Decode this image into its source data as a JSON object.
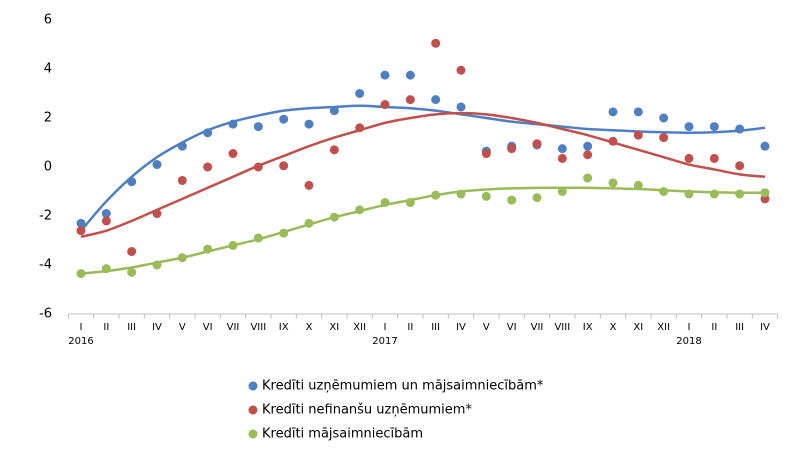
{
  "chart_data": {
    "type": "scatter-trend",
    "categories": [
      "I",
      "II",
      "III",
      "IV",
      "V",
      "VI",
      "VII",
      "VIII",
      "IX",
      "X",
      "XI",
      "XII",
      "I",
      "II",
      "III",
      "IV",
      "V",
      "VI",
      "VII",
      "VIII",
      "IX",
      "X",
      "XI",
      "XII",
      "I",
      "II",
      "III",
      "IV"
    ],
    "years": [
      "2016",
      null,
      null,
      null,
      null,
      null,
      null,
      null,
      null,
      null,
      null,
      null,
      "2017",
      null,
      null,
      null,
      null,
      null,
      null,
      null,
      null,
      null,
      null,
      null,
      "2018",
      null,
      null,
      null
    ],
    "ylim": [
      -6,
      6
    ],
    "yticks": [
      -6,
      -4,
      -2,
      0,
      2,
      4,
      6
    ],
    "series": [
      {
        "name": "Kredīti uzņēmumiem un mājsaimniecībām*",
        "color": "#4f7fc0",
        "values": [
          -2.3,
          -1.9,
          -0.6,
          0.1,
          0.85,
          1.4,
          1.75,
          1.65,
          1.95,
          1.75,
          2.3,
          3.0,
          3.75,
          3.75,
          2.75,
          2.45,
          0.65,
          0.85,
          0.9,
          0.75,
          0.85,
          2.25,
          2.25,
          2.0,
          1.65,
          1.65,
          1.55,
          0.85
        ],
        "trend": [
          -2.6,
          -1.4,
          -0.4,
          0.4,
          1.0,
          1.5,
          1.85,
          2.1,
          2.3,
          2.4,
          2.45,
          2.5,
          2.45,
          2.4,
          2.3,
          2.15,
          2.0,
          1.85,
          1.75,
          1.65,
          1.55,
          1.5,
          1.45,
          1.42,
          1.4,
          1.42,
          1.48,
          1.6
        ]
      },
      {
        "name": "Kredīti nefinanšu uzņēmumiem*",
        "color": "#c0504d",
        "values": [
          -2.6,
          -2.2,
          -3.45,
          -1.9,
          -0.55,
          0.0,
          0.55,
          0.0,
          0.05,
          -0.75,
          0.7,
          1.6,
          2.55,
          2.75,
          5.05,
          3.95,
          0.55,
          0.75,
          0.95,
          0.35,
          0.5,
          1.05,
          1.3,
          1.2,
          0.35,
          0.35,
          0.05,
          -1.3
        ],
        "trend": [
          -2.85,
          -2.6,
          -2.2,
          -1.75,
          -1.3,
          -0.85,
          -0.4,
          0.05,
          0.45,
          0.85,
          1.2,
          1.5,
          1.8,
          2.0,
          2.15,
          2.2,
          2.15,
          2.0,
          1.8,
          1.55,
          1.3,
          1.0,
          0.7,
          0.4,
          0.1,
          -0.1,
          -0.3,
          -0.4
        ]
      },
      {
        "name": "Kredīti mājsaimniecībām",
        "color": "#9bbb59",
        "values": [
          -4.35,
          -4.15,
          -4.3,
          -4.0,
          -3.7,
          -3.35,
          -3.2,
          -2.9,
          -2.7,
          -2.3,
          -2.05,
          -1.75,
          -1.45,
          -1.45,
          -1.15,
          -1.1,
          -1.2,
          -1.35,
          -1.25,
          -1.0,
          -0.45,
          -0.65,
          -0.75,
          -1.0,
          -1.1,
          -1.1,
          -1.1,
          -1.05
        ],
        "trend": [
          -4.35,
          -4.25,
          -4.1,
          -3.9,
          -3.7,
          -3.45,
          -3.2,
          -2.95,
          -2.65,
          -2.35,
          -2.05,
          -1.8,
          -1.55,
          -1.35,
          -1.15,
          -1.0,
          -0.92,
          -0.87,
          -0.85,
          -0.85,
          -0.85,
          -0.87,
          -0.9,
          -0.95,
          -1.0,
          -1.03,
          -1.05,
          -1.05
        ]
      }
    ]
  }
}
